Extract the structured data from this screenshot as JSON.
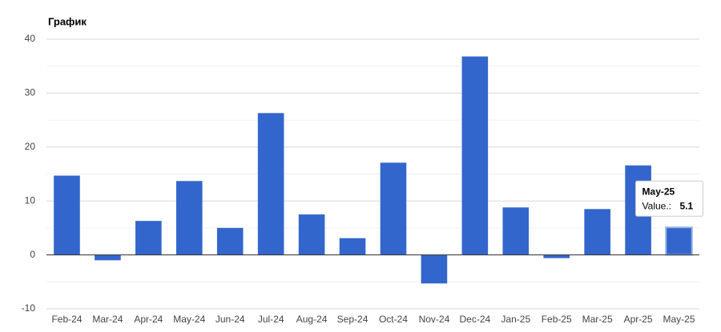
{
  "chart_data": {
    "type": "bar",
    "title": "График",
    "categories": [
      "Feb-24",
      "Mar-24",
      "Apr-24",
      "May-24",
      "Jun-24",
      "Jul-24",
      "Aug-24",
      "Sep-24",
      "Oct-24",
      "Nov-24",
      "Dec-24",
      "Jan-25",
      "Feb-25",
      "Mar-25",
      "Apr-25",
      "May-25"
    ],
    "series": [
      {
        "name": "Value.:",
        "color": "#3366cc",
        "values": [
          14.7,
          -1.0,
          6.3,
          13.7,
          5.0,
          26.3,
          7.5,
          3.1,
          17.1,
          -5.3,
          36.8,
          8.8,
          -0.6,
          8.5,
          16.6,
          5.1
        ]
      }
    ],
    "ylim": [
      -10,
      40
    ],
    "yticks": [
      -10,
      0,
      10,
      20,
      30,
      40
    ],
    "grid": true,
    "tooltip_index": 15
  }
}
